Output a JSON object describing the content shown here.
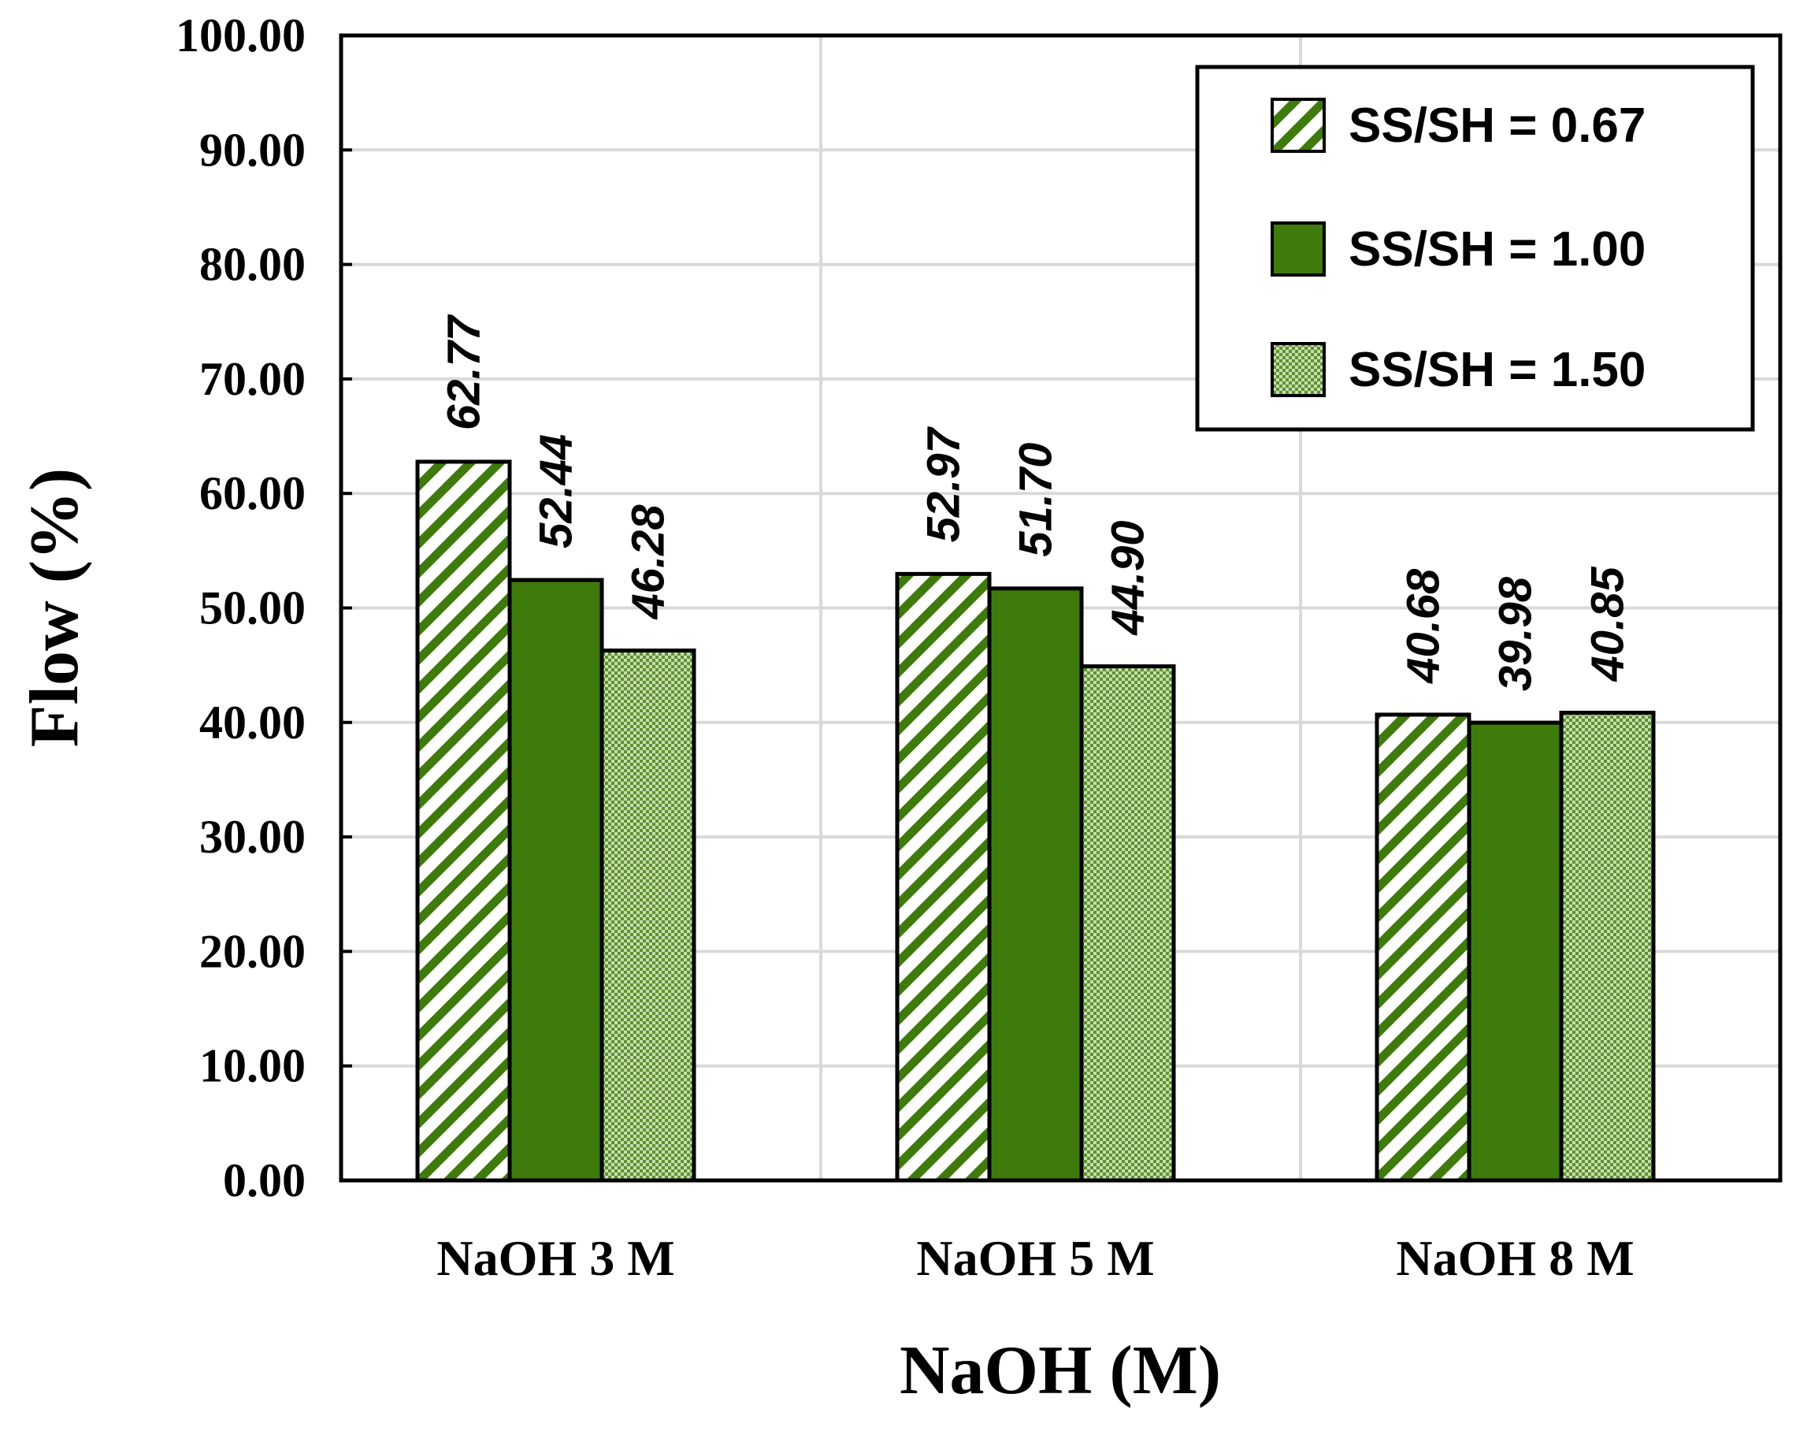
{
  "chart_data": {
    "type": "bar",
    "title": "",
    "xlabel": "NaOH (M)",
    "ylabel": "Flow (%)",
    "ylim": [
      0,
      100
    ],
    "yticks": [
      "0.00",
      "10.00",
      "20.00",
      "30.00",
      "40.00",
      "50.00",
      "60.00",
      "70.00",
      "80.00",
      "90.00",
      "100.00"
    ],
    "grid": true,
    "legend_position": "top-right",
    "categories": [
      "NaOH 3 M",
      "NaOH 5 M",
      "NaOH 8 M"
    ],
    "series": [
      {
        "name": "SS/SH = 0.67",
        "values": [
          62.77,
          52.97,
          40.68
        ],
        "labels": [
          "62.77",
          "52.97",
          "40.68"
        ],
        "pattern": "diagonal-stripes"
      },
      {
        "name": "SS/SH = 1.00",
        "values": [
          52.44,
          51.7,
          39.98
        ],
        "labels": [
          "52.44",
          "51.70",
          "39.98"
        ],
        "pattern": "solid"
      },
      {
        "name": "SS/SH = 1.50",
        "values": [
          46.28,
          44.9,
          40.85
        ],
        "labels": [
          "46.28",
          "44.90",
          "40.85"
        ],
        "pattern": "dots"
      }
    ],
    "colors": {
      "primary": "#3f7a0c",
      "light": "#b9d49a",
      "frame": "#000000",
      "grid": "#d9d9d9"
    }
  }
}
